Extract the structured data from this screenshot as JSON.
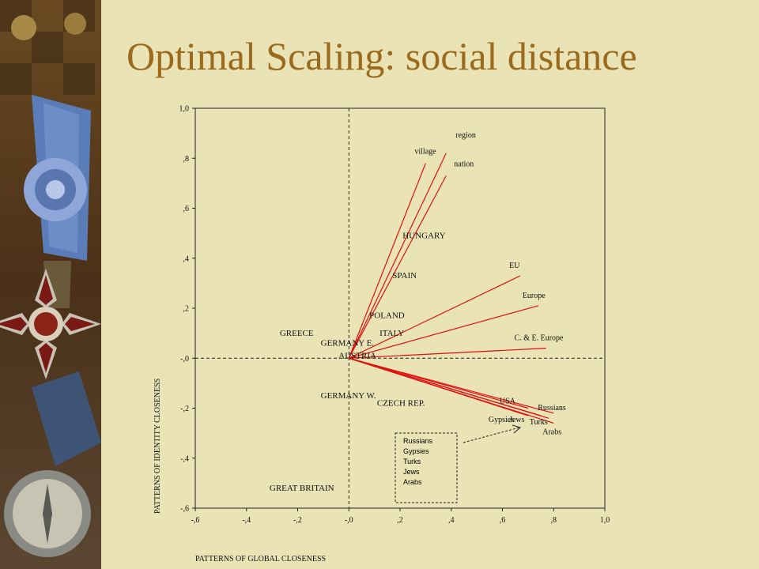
{
  "slide": {
    "title": "Optimal Scaling: social distance"
  },
  "colors": {
    "background": "#e9e3b5",
    "title": "#9b6a1c",
    "vector": "#e01010"
  },
  "chart_data": {
    "type": "scatter",
    "xlabel": "PATTERNS OF GLOBAL CLOSENESS",
    "ylabel": "PATTERNS OF IDENTITY CLOSENESS",
    "xlim": [
      -0.6,
      1.0
    ],
    "ylim": [
      -0.6,
      1.0
    ],
    "xticks": [
      -0.6,
      -0.4,
      -0.2,
      0,
      0.2,
      0.4,
      0.6,
      0.8,
      1.0
    ],
    "yticks": [
      -0.6,
      -0.4,
      -0.2,
      0,
      0.2,
      0.4,
      0.6,
      0.8,
      1.0
    ],
    "xtick_labels": [
      "-,6",
      "-,4",
      "-,2",
      "-,0",
      ",2",
      ",4",
      ",6",
      ",8",
      "1,0"
    ],
    "ytick_labels": [
      "-,6",
      "-,4",
      "-,2",
      "-,0",
      ",2",
      ",4",
      ",6",
      ",8",
      "1,0"
    ],
    "grid": false,
    "reference_lines": "dashed at x=0 and y=0",
    "countries": [
      {
        "label": "HUNGARY",
        "x": 0.21,
        "y": 0.48
      },
      {
        "label": "SPAIN",
        "x": 0.17,
        "y": 0.32
      },
      {
        "label": "POLAND",
        "x": 0.08,
        "y": 0.16
      },
      {
        "label": "ITALY",
        "x": 0.12,
        "y": 0.09
      },
      {
        "label": "GREECE",
        "x": -0.27,
        "y": 0.09
      },
      {
        "label": "GERMANY E.",
        "x": -0.11,
        "y": 0.05
      },
      {
        "label": "AUSTRIA",
        "x": -0.04,
        "y": 0.0
      },
      {
        "label": "GERMANY W.",
        "x": -0.11,
        "y": -0.16
      },
      {
        "label": "CZECH REP.",
        "x": 0.11,
        "y": -0.19
      },
      {
        "label": "GREAT BRITAIN",
        "x": -0.31,
        "y": -0.53
      }
    ],
    "vectors": [
      {
        "label": "region",
        "x": 0.38,
        "y": 0.82
      },
      {
        "label": "village",
        "x": 0.3,
        "y": 0.78
      },
      {
        "label": "nation",
        "x": 0.38,
        "y": 0.73
      },
      {
        "label": "EU",
        "x": 0.67,
        "y": 0.33
      },
      {
        "label": "Europe",
        "x": 0.74,
        "y": 0.21
      },
      {
        "label": "C. & E. Europe",
        "x": 0.77,
        "y": 0.04
      },
      {
        "label": "USA",
        "x": 0.7,
        "y": -0.2
      },
      {
        "label": "Russians",
        "x": 0.8,
        "y": -0.22
      },
      {
        "label": "Gypsies",
        "x": 0.7,
        "y": -0.23
      },
      {
        "label": "Jews",
        "x": 0.75,
        "y": -0.23
      },
      {
        "label": "Turks",
        "x": 0.78,
        "y": -0.24
      },
      {
        "label": "Arabs",
        "x": 0.8,
        "y": -0.26
      }
    ],
    "inset_legend": {
      "items": [
        "Russians",
        "Gypsies",
        "Turks",
        "Jews",
        "Arabs"
      ]
    }
  }
}
